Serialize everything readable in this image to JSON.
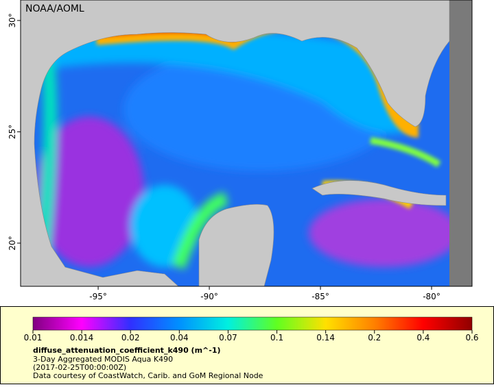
{
  "map": {
    "label": "NOAA/AOML",
    "xlim": [
      -98.49,
      -78.18
    ],
    "ylim": [
      18.06,
      30.92
    ],
    "xticks": [
      {
        "value": -95,
        "label": "-95°"
      },
      {
        "value": -90,
        "label": "-90°"
      },
      {
        "value": -85,
        "label": "-85°"
      },
      {
        "value": -80,
        "label": "-80°"
      }
    ],
    "yticks": [
      {
        "value": 20,
        "label": "20°"
      },
      {
        "value": 25,
        "label": "25°"
      },
      {
        "value": 30,
        "label": "30°"
      }
    ]
  },
  "legend": {
    "ticks": [
      0.01,
      0.014,
      0.02,
      0.04,
      0.07,
      0.1,
      0.14,
      0.2,
      0.4,
      0.6
    ],
    "variable": "diffuse_attenuation_coefficient_k490 (m^-1)",
    "lines": [
      "3-Day Aggregated MODIS Aqua K490",
      "(2017-02-25T00:00:00Z)",
      "Data courtesy of CoastWatch, Carib. and GoM Regional Node"
    ]
  }
}
